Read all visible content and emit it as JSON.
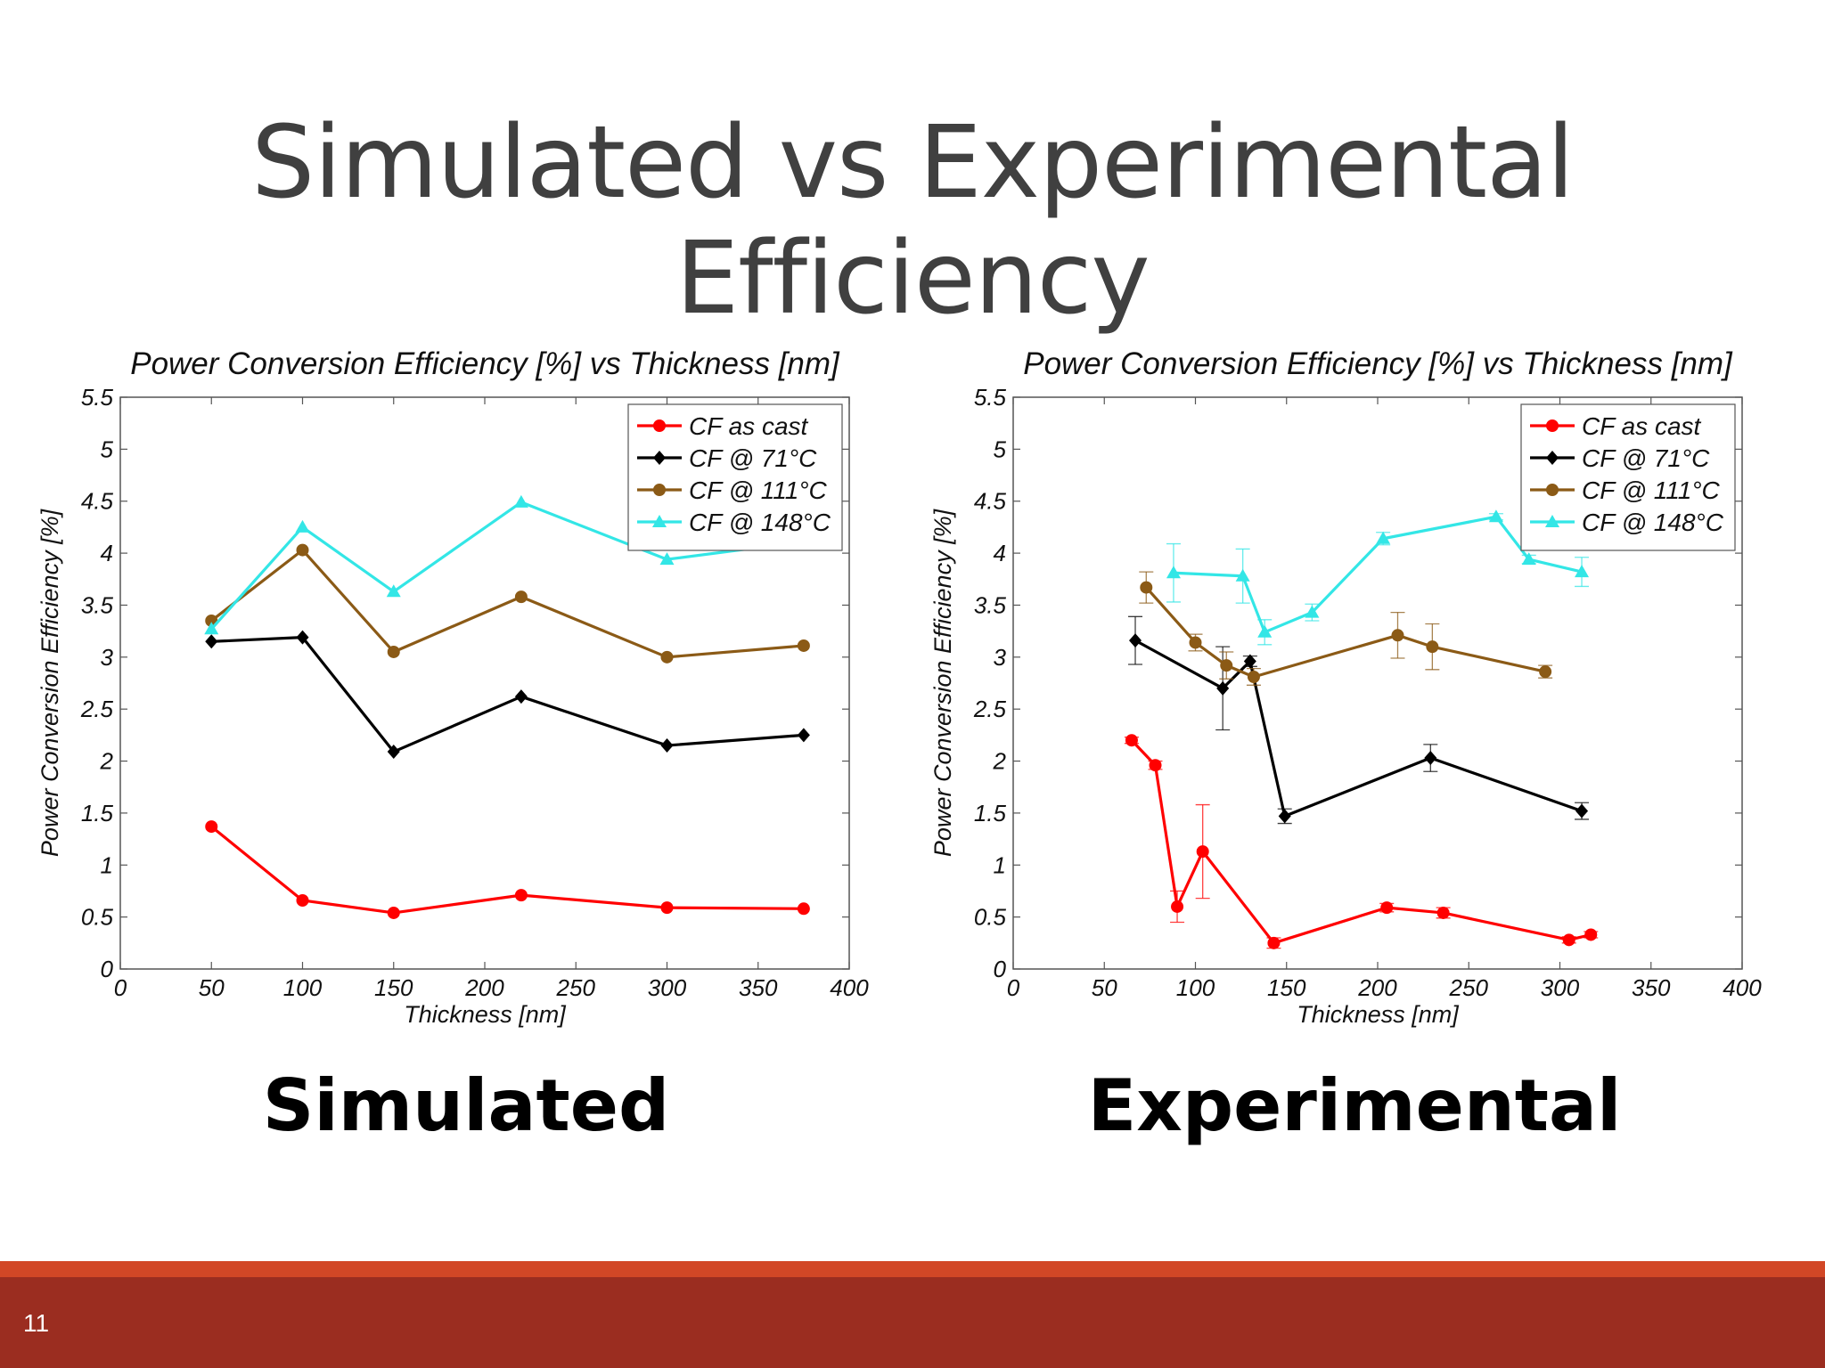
{
  "slide": {
    "title": "Simulated vs Experimental Efficiency",
    "page_number": "11"
  },
  "colors": {
    "cf_as_cast": "#ff0000",
    "cf_71": "#000000",
    "cf_111": "#8b5a16",
    "cf_148": "#33e6e6",
    "footer_stripe": "#d24726",
    "footer_bar": "#9b2d20"
  },
  "chart_data": [
    {
      "type": "line",
      "id": "simulated",
      "caption": "Simulated",
      "title": "Power Conversion Efficiency [%] vs Thickness [nm]",
      "xlabel": "Thickness [nm]",
      "ylabel": "Power Conversion Efficiency [%]",
      "xlim": [
        0,
        400
      ],
      "ylim": [
        0,
        5.5
      ],
      "xticks": [
        "0",
        "50",
        "100",
        "150",
        "200",
        "250",
        "300",
        "350",
        "400"
      ],
      "yticks": [
        "0",
        "0.5",
        "1",
        "1.5",
        "2",
        "2.5",
        "3",
        "3.5",
        "4",
        "4.5",
        "5",
        "5.5"
      ],
      "legend_position": "top-right",
      "grid": false,
      "series": [
        {
          "name": "CF as cast",
          "color": "#ff0000",
          "marker": "circle",
          "x": [
            50,
            100,
            150,
            220,
            300,
            375
          ],
          "y": [
            1.37,
            0.66,
            0.54,
            0.71,
            0.59,
            0.58
          ]
        },
        {
          "name": "CF @ 71°C",
          "color": "#000000",
          "marker": "diamond",
          "x": [
            50,
            100,
            150,
            220,
            300,
            375
          ],
          "y": [
            3.15,
            3.19,
            2.09,
            2.62,
            2.15,
            2.25
          ]
        },
        {
          "name": "CF @ 111°C",
          "color": "#8b5a16",
          "marker": "circle",
          "x": [
            50,
            100,
            150,
            220,
            300,
            375
          ],
          "y": [
            3.35,
            4.03,
            3.05,
            3.58,
            3.0,
            3.11
          ]
        },
        {
          "name": "CF @ 148°C",
          "color": "#33e6e6",
          "marker": "triangle",
          "x": [
            50,
            100,
            150,
            220,
            300,
            375
          ],
          "y": [
            3.27,
            4.25,
            3.63,
            4.49,
            3.94,
            4.11
          ]
        }
      ]
    },
    {
      "type": "line",
      "id": "experimental",
      "caption": "Experimental",
      "title": "Power Conversion Efficiency [%] vs Thickness [nm]",
      "xlabel": "Thickness [nm]",
      "ylabel": "Power Conversion Efficiency [%]",
      "xlim": [
        0,
        400
      ],
      "ylim": [
        0,
        5.5
      ],
      "xticks": [
        "0",
        "50",
        "100",
        "150",
        "200",
        "250",
        "300",
        "350",
        "400"
      ],
      "yticks": [
        "0",
        "0.5",
        "1",
        "1.5",
        "2",
        "2.5",
        "3",
        "3.5",
        "4",
        "4.5",
        "5",
        "5.5"
      ],
      "legend_position": "top-right",
      "grid": false,
      "series": [
        {
          "name": "CF as cast",
          "color": "#ff0000",
          "marker": "circle",
          "x": [
            65,
            78,
            90,
            104,
            143,
            205,
            236,
            305,
            317
          ],
          "y": [
            2.2,
            1.96,
            0.6,
            1.13,
            0.25,
            0.59,
            0.54,
            0.28,
            0.33
          ],
          "err": [
            0.03,
            0.04,
            0.15,
            0.45,
            0.05,
            0.04,
            0.05,
            0.03,
            0.03
          ]
        },
        {
          "name": "CF @ 71°C",
          "color": "#000000",
          "marker": "diamond",
          "x": [
            67,
            115,
            130,
            149,
            229,
            312
          ],
          "y": [
            3.16,
            2.7,
            2.96,
            1.47,
            2.03,
            1.52
          ],
          "err": [
            0.23,
            0.4,
            0.05,
            0.07,
            0.13,
            0.08
          ]
        },
        {
          "name": "CF @ 111°C",
          "color": "#8b5a16",
          "marker": "circle",
          "x": [
            73,
            100,
            117,
            132,
            211,
            230,
            292
          ],
          "y": [
            3.67,
            3.14,
            2.92,
            2.81,
            3.21,
            3.1,
            2.86
          ],
          "err": [
            0.15,
            0.08,
            0.13,
            0.08,
            0.22,
            0.22,
            0.06
          ]
        },
        {
          "name": "CF @ 148°C",
          "color": "#33e6e6",
          "marker": "triangle",
          "x": [
            88,
            126,
            138,
            164,
            203,
            265,
            283,
            312
          ],
          "y": [
            3.81,
            3.78,
            3.24,
            3.43,
            4.14,
            4.35,
            3.94,
            3.82
          ],
          "err": [
            0.28,
            0.26,
            0.12,
            0.08,
            0.06,
            0.03,
            0.04,
            0.14
          ]
        }
      ]
    }
  ]
}
